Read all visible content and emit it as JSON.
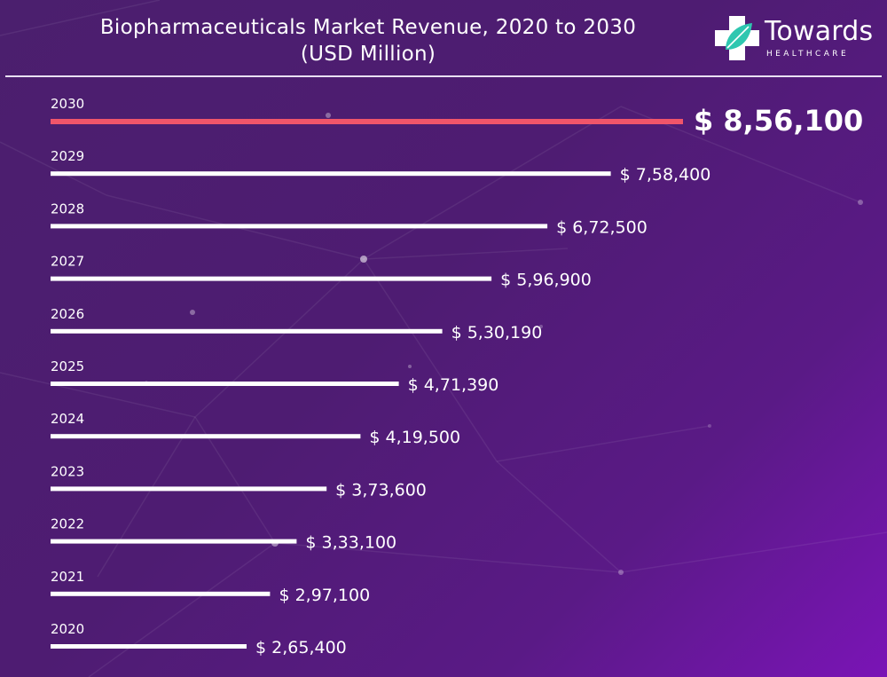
{
  "title_line1": "Biopharmaceuticals Market Revenue, 2020 to 2030",
  "title_line2": "(USD Million)",
  "logo": {
    "word": "Towards",
    "sub": "HEALTHCARE",
    "icon": "cross-leaf-icon"
  },
  "colors": {
    "bar": "#ffffff",
    "highlight_bar": "#f0556a",
    "background_start": "#4b1f6e",
    "background_end": "#7a14b6"
  },
  "chart_data": {
    "type": "bar",
    "orientation": "horizontal",
    "title": "Biopharmaceuticals Market Revenue, 2020 to 2030 (USD Million)",
    "categories": [
      "2030",
      "2029",
      "2028",
      "2027",
      "2026",
      "2025",
      "2024",
      "2023",
      "2022",
      "2021",
      "2020"
    ],
    "values": [
      856100,
      758400,
      672500,
      596900,
      530190,
      471390,
      419500,
      373600,
      333100,
      297100,
      265400
    ],
    "value_labels": [
      "$ 8,56,100",
      "$ 7,58,400",
      "$ 6,72,500",
      "$ 5,96,900",
      "$ 5,30,190",
      "$ 4,71,390",
      "$ 4,19,500",
      "$ 3,73,600",
      "$ 3,33,100",
      "$ 2,97,100",
      "$ 2,65,400"
    ],
    "highlight": "2030",
    "grid": false,
    "legend": "none"
  }
}
